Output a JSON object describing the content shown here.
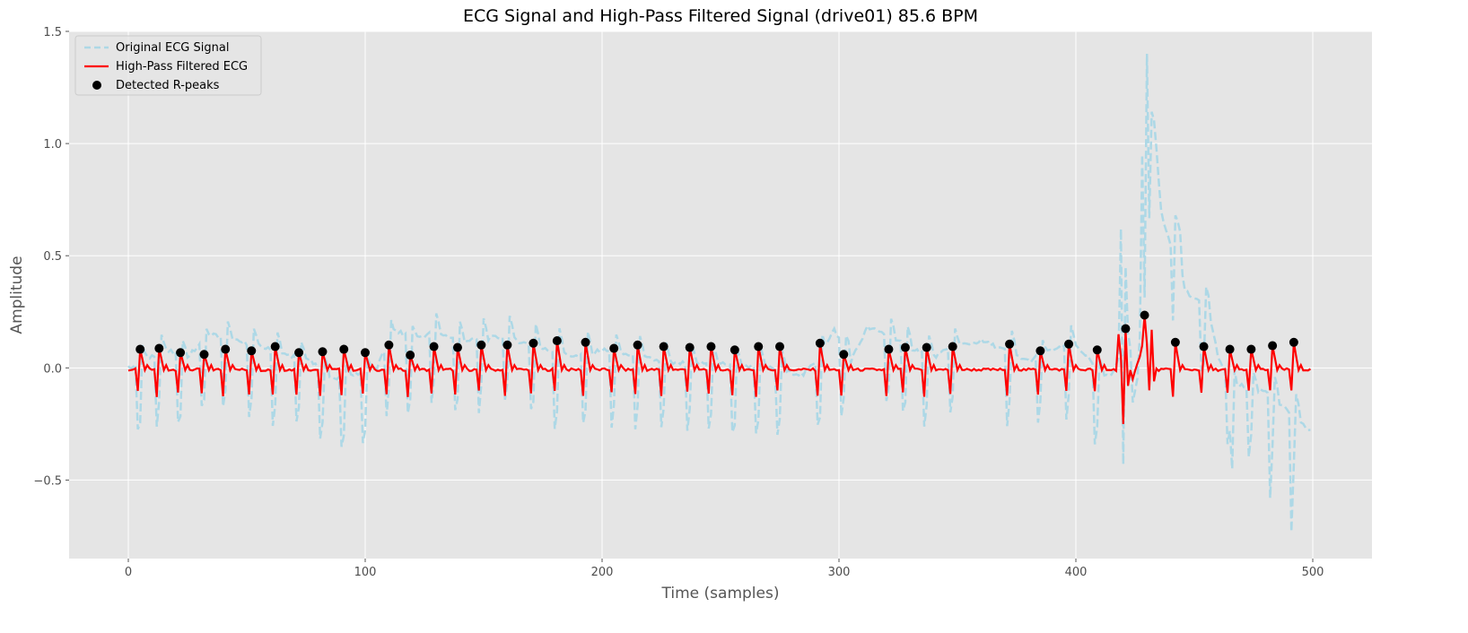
{
  "chart_data": {
    "type": "line",
    "title": "ECG Signal and High-Pass Filtered Signal (drive01) 85.6 BPM",
    "xlabel": "Time (samples)",
    "ylabel": "Amplitude",
    "xlim": [
      -25,
      525
    ],
    "ylim": [
      -0.85,
      1.5
    ],
    "xticks": [
      0,
      100,
      200,
      300,
      400,
      500
    ],
    "xtick_labels": [
      "0",
      "100",
      "200",
      "300",
      "400",
      "500"
    ],
    "yticks": [
      -0.5,
      0.0,
      0.5,
      1.0,
      1.5
    ],
    "ytick_labels": [
      "−0.5",
      "0.0",
      "0.5",
      "1.0",
      "1.5"
    ],
    "grid": true,
    "legend_position": "top-left",
    "r_peaks": [
      [
        5,
        0.083
      ],
      [
        13,
        0.087
      ],
      [
        22,
        0.068
      ],
      [
        32,
        0.06
      ],
      [
        41,
        0.083
      ],
      [
        52,
        0.076
      ],
      [
        62,
        0.095
      ],
      [
        72,
        0.068
      ],
      [
        82,
        0.072
      ],
      [
        91,
        0.083
      ],
      [
        100,
        0.068
      ],
      [
        110,
        0.102
      ],
      [
        119,
        0.057
      ],
      [
        129,
        0.095
      ],
      [
        139,
        0.091
      ],
      [
        149,
        0.102
      ],
      [
        160,
        0.102
      ],
      [
        171,
        0.11
      ],
      [
        181,
        0.121
      ],
      [
        193,
        0.114
      ],
      [
        205,
        0.087
      ],
      [
        215,
        0.102
      ],
      [
        226,
        0.095
      ],
      [
        237,
        0.091
      ],
      [
        246,
        0.095
      ],
      [
        256,
        0.08
      ],
      [
        266,
        0.095
      ],
      [
        275,
        0.095
      ],
      [
        292,
        0.11
      ],
      [
        302,
        0.06
      ],
      [
        321,
        0.083
      ],
      [
        328,
        0.091
      ],
      [
        337,
        0.091
      ],
      [
        348,
        0.095
      ],
      [
        372,
        0.106
      ],
      [
        385,
        0.076
      ],
      [
        397,
        0.106
      ],
      [
        409,
        0.08
      ],
      [
        421,
        0.175
      ],
      [
        429,
        0.235
      ],
      [
        442,
        0.114
      ],
      [
        454,
        0.095
      ],
      [
        465,
        0.083
      ],
      [
        474,
        0.083
      ],
      [
        483,
        0.099
      ],
      [
        492,
        0.114
      ]
    ],
    "wander_points": [
      [
        0,
        0.0
      ],
      [
        15,
        0.08
      ],
      [
        25,
        0.05
      ],
      [
        35,
        0.15
      ],
      [
        45,
        0.12
      ],
      [
        55,
        0.1
      ],
      [
        65,
        0.06
      ],
      [
        75,
        0.05
      ],
      [
        85,
        -0.05
      ],
      [
        95,
        -0.03
      ],
      [
        105,
        0.0
      ],
      [
        112,
        0.17
      ],
      [
        120,
        0.13
      ],
      [
        130,
        0.16
      ],
      [
        140,
        0.12
      ],
      [
        150,
        0.13
      ],
      [
        160,
        0.14
      ],
      [
        170,
        0.1
      ],
      [
        180,
        0.07
      ],
      [
        190,
        0.05
      ],
      [
        200,
        0.08
      ],
      [
        215,
        0.05
      ],
      [
        230,
        0.02
      ],
      [
        250,
        0.02
      ],
      [
        270,
        0.0
      ],
      [
        285,
        -0.03
      ],
      [
        292,
        0.05
      ],
      [
        298,
        0.17
      ],
      [
        305,
        0.03
      ],
      [
        312,
        0.18
      ],
      [
        320,
        0.15
      ],
      [
        330,
        0.09
      ],
      [
        340,
        0.05
      ],
      [
        350,
        0.1
      ],
      [
        360,
        0.12
      ],
      [
        370,
        0.08
      ],
      [
        380,
        0.03
      ],
      [
        390,
        0.08
      ],
      [
        400,
        0.1
      ],
      [
        405,
        0.05
      ],
      [
        410,
        -0.05
      ],
      [
        415,
        -0.03
      ],
      [
        420,
        0.1
      ],
      [
        423,
        -0.2
      ],
      [
        426,
        -0.05
      ],
      [
        429,
        0.55
      ],
      [
        431,
        1.2
      ],
      [
        433,
        1.1
      ],
      [
        436,
        0.7
      ],
      [
        440,
        0.55
      ],
      [
        443,
        0.55
      ],
      [
        446,
        0.35
      ],
      [
        450,
        0.3
      ],
      [
        453,
        0.3
      ],
      [
        457,
        0.2
      ],
      [
        460,
        0.05
      ],
      [
        465,
        -0.05
      ],
      [
        470,
        -0.08
      ],
      [
        475,
        -0.1
      ],
      [
        480,
        -0.1
      ],
      [
        485,
        -0.15
      ],
      [
        490,
        -0.2
      ],
      [
        495,
        -0.25
      ],
      [
        499,
        -0.28
      ]
    ],
    "series": [
      {
        "name": "Original ECG Signal",
        "color": "#add8e6",
        "style": "dashed"
      },
      {
        "name": "High-Pass Filtered ECG",
        "color": "#ff0000",
        "style": "solid"
      },
      {
        "name": "Detected R-peaks",
        "color": "#000000",
        "style": "marker"
      }
    ]
  }
}
